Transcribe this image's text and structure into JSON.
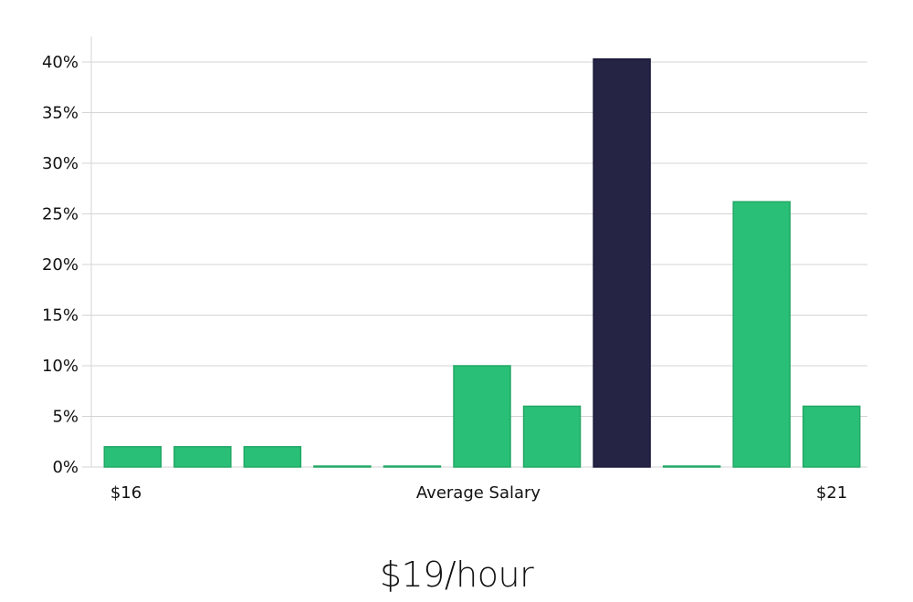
{
  "colors": {
    "bar": "#2ABF77",
    "bar_stroke": "#22A866",
    "highlight": "#262445",
    "highlight_stroke": "#1B1A3A",
    "grid": "#D4D4D4",
    "axis": "#D4D4D4"
  },
  "headline": "$19/hour",
  "chart_data": {
    "type": "bar",
    "x_labels": {
      "left": "$16",
      "center": "Average Salary",
      "right": "$21"
    },
    "y_tick_labels": [
      "0%",
      "5%",
      "10%",
      "15%",
      "20%",
      "25%",
      "30%",
      "35%",
      "40%"
    ],
    "ylim": [
      0,
      42.5
    ],
    "grid": true,
    "highlight_index": 7,
    "values": [
      2.0,
      2.0,
      2.0,
      0.0,
      0.0,
      10.0,
      6.0,
      40.3,
      0.0,
      26.2,
      6.0
    ]
  }
}
